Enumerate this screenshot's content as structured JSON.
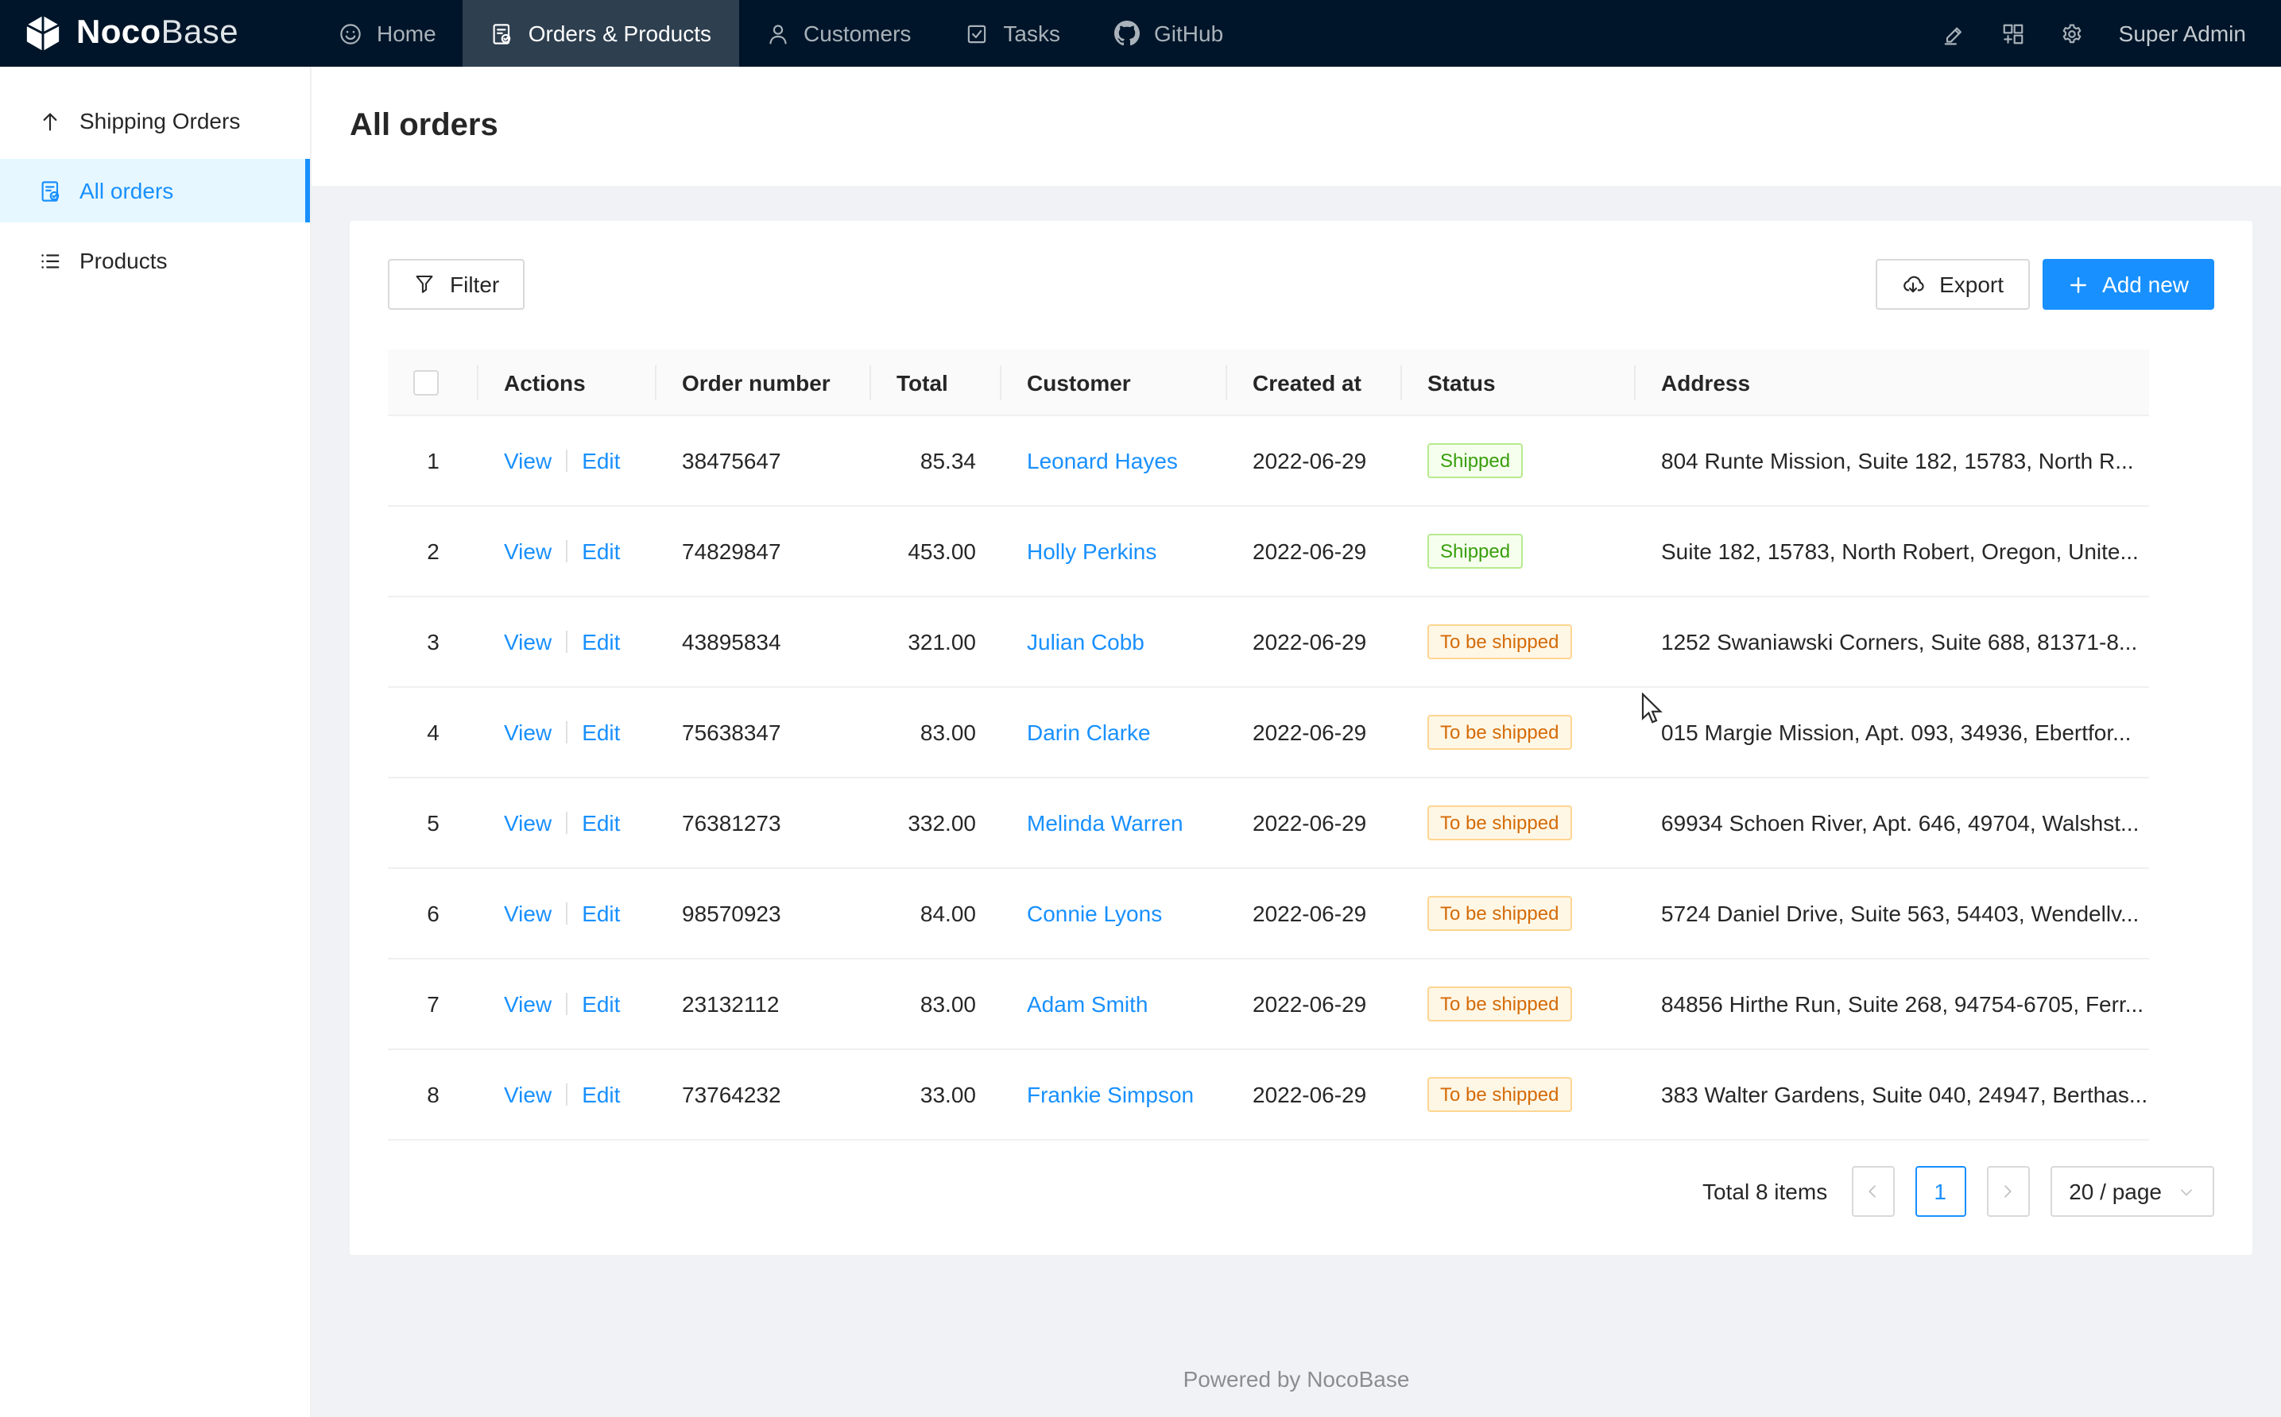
{
  "navbar": {
    "logo_bold": "Noco",
    "logo_light": "Base",
    "items": [
      {
        "label": "Home",
        "icon": "smiley-icon",
        "active": false
      },
      {
        "label": "Orders & Products",
        "icon": "order-file-icon",
        "active": true
      },
      {
        "label": "Customers",
        "icon": "customers-icon",
        "active": false
      },
      {
        "label": "Tasks",
        "icon": "tasks-icon",
        "active": false
      },
      {
        "label": "GitHub",
        "icon": "github-icon",
        "active": false
      }
    ],
    "right_icons": [
      "highlight-icon",
      "appstore-add-icon",
      "gear-icon"
    ],
    "user": "Super Admin"
  },
  "sidebar": {
    "items": [
      {
        "label": "Shipping Orders",
        "icon": "arrow-up-icon",
        "active": false
      },
      {
        "label": "All orders",
        "icon": "order-file-icon",
        "active": true
      },
      {
        "label": "Products",
        "icon": "list-icon",
        "active": false
      }
    ]
  },
  "page": {
    "title": "All orders"
  },
  "toolbar": {
    "filter_label": "Filter",
    "export_label": "Export",
    "add_new_label": "Add new"
  },
  "table": {
    "columns": [
      {
        "key": "actions",
        "label": "Actions"
      },
      {
        "key": "order_number",
        "label": "Order number"
      },
      {
        "key": "total",
        "label": "Total"
      },
      {
        "key": "customer",
        "label": "Customer"
      },
      {
        "key": "created_at",
        "label": "Created at"
      },
      {
        "key": "status",
        "label": "Status"
      },
      {
        "key": "address",
        "label": "Address"
      }
    ],
    "action_labels": {
      "view": "View",
      "edit": "Edit"
    },
    "rows": [
      {
        "index": "1",
        "order_number": "38475647",
        "total": "85.34",
        "customer": "Leonard Hayes",
        "created_at": "2022-06-29",
        "status": "Shipped",
        "status_type": "success",
        "address": "804 Runte Mission, Suite 182, 15783, North R..."
      },
      {
        "index": "2",
        "order_number": "74829847",
        "total": "453.00",
        "customer": "Holly Perkins",
        "created_at": "2022-06-29",
        "status": "Shipped",
        "status_type": "success",
        "address": "Suite 182, 15783, North Robert, Oregon, Unite..."
      },
      {
        "index": "3",
        "order_number": "43895834",
        "total": "321.00",
        "customer": "Julian Cobb",
        "created_at": "2022-06-29",
        "status": "To be shipped",
        "status_type": "warning",
        "address": "1252 Swaniawski Corners, Suite 688, 81371-8..."
      },
      {
        "index": "4",
        "order_number": "75638347",
        "total": "83.00",
        "customer": "Darin Clarke",
        "created_at": "2022-06-29",
        "status": "To be shipped",
        "status_type": "warning",
        "address": "015 Margie Mission, Apt. 093, 34936, Ebertfor..."
      },
      {
        "index": "5",
        "order_number": "76381273",
        "total": "332.00",
        "customer": "Melinda Warren",
        "created_at": "2022-06-29",
        "status": "To be shipped",
        "status_type": "warning",
        "address": "69934 Schoen River, Apt. 646, 49704, Walshst..."
      },
      {
        "index": "6",
        "order_number": "98570923",
        "total": "84.00",
        "customer": "Connie Lyons",
        "created_at": "2022-06-29",
        "status": "To be shipped",
        "status_type": "warning",
        "address": "5724 Daniel Drive, Suite 563, 54403, Wendellv..."
      },
      {
        "index": "7",
        "order_number": "23132112",
        "total": "83.00",
        "customer": "Adam Smith",
        "created_at": "2022-06-29",
        "status": "To be shipped",
        "status_type": "warning",
        "address": "84856 Hirthe Run, Suite 268, 94754-6705, Ferr..."
      },
      {
        "index": "8",
        "order_number": "73764232",
        "total": "33.00",
        "customer": "Frankie Simpson",
        "created_at": "2022-06-29",
        "status": "To be shipped",
        "status_type": "warning",
        "address": "383 Walter Gardens, Suite 040, 24947, Berthas..."
      }
    ]
  },
  "pagination": {
    "total_text": "Total 8 items",
    "current_page": "1",
    "page_size": "20 / page"
  },
  "footer": {
    "text": "Powered by NocoBase"
  },
  "colors": {
    "accent": "#1890ff",
    "navbar_bg": "#001529",
    "sidebar_active_bg": "#e6f7ff",
    "tag_shipped": {
      "text": "#389e0d",
      "bg": "#f6ffed",
      "border": "#b7eb8f"
    },
    "tag_to_be_shipped": {
      "text": "#d46b08",
      "bg": "#fff7e6",
      "border": "#ffd591"
    }
  }
}
